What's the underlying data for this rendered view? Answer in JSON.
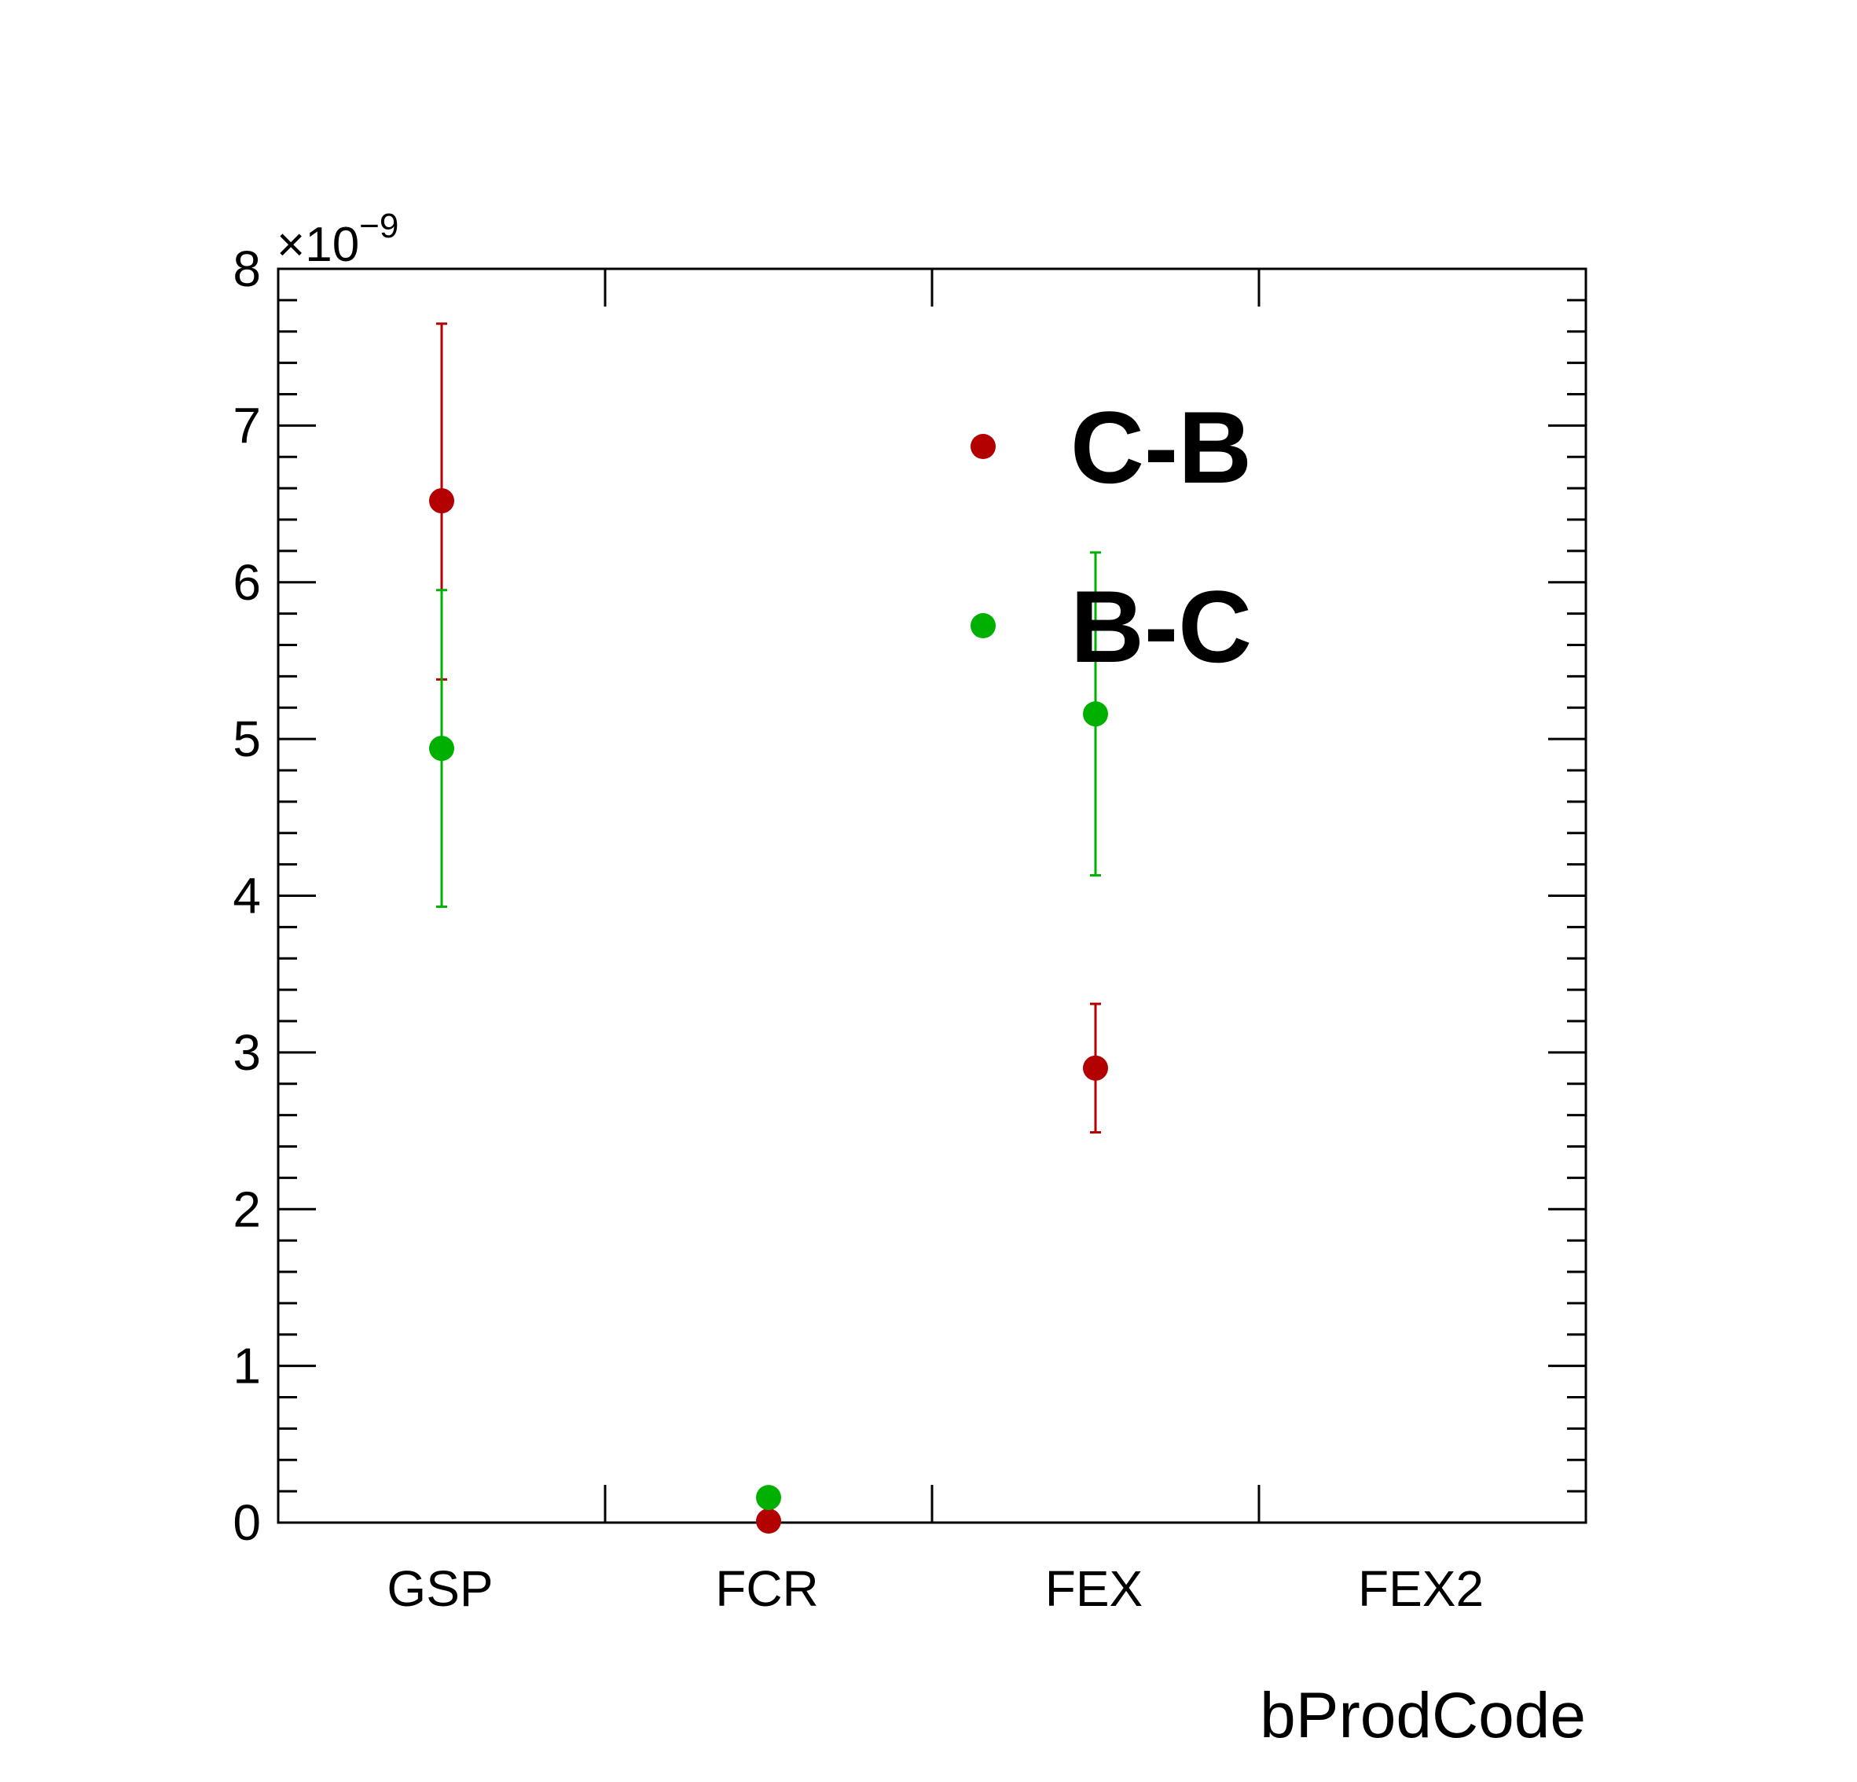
{
  "chart_data": {
    "type": "scatter",
    "xlabel": "bProdCode",
    "ylabel": "",
    "y_exponent_label": "×10",
    "y_exponent_power": "−9",
    "categories": [
      "GSP",
      "FCR",
      "FEX",
      "FEX2"
    ],
    "ylim": [
      0,
      8
    ],
    "y_ticks": [
      "0",
      "1",
      "2",
      "3",
      "4",
      "5",
      "6",
      "7",
      "8"
    ],
    "y_minor_divisions": 5,
    "grid": false,
    "legend_position": "top-right",
    "series": [
      {
        "name": "C-B",
        "color": "#b30000",
        "points": [
          {
            "category": "GSP",
            "y": 6.52,
            "err_low": 1.14,
            "err_high": 1.13
          },
          {
            "category": "FCR",
            "y": 0.01,
            "err_low": 0.0,
            "err_high": 0.0
          },
          {
            "category": "FEX",
            "y": 2.9,
            "err_low": 0.41,
            "err_high": 0.41
          }
        ]
      },
      {
        "name": "B-C",
        "color": "#00b000",
        "points": [
          {
            "category": "GSP",
            "y": 4.94,
            "err_low": 1.01,
            "err_high": 1.01
          },
          {
            "category": "FCR",
            "y": 0.16,
            "err_low": 0.0,
            "err_high": 0.0
          },
          {
            "category": "FEX",
            "y": 5.16,
            "err_low": 1.03,
            "err_high": 1.03
          }
        ]
      }
    ]
  }
}
